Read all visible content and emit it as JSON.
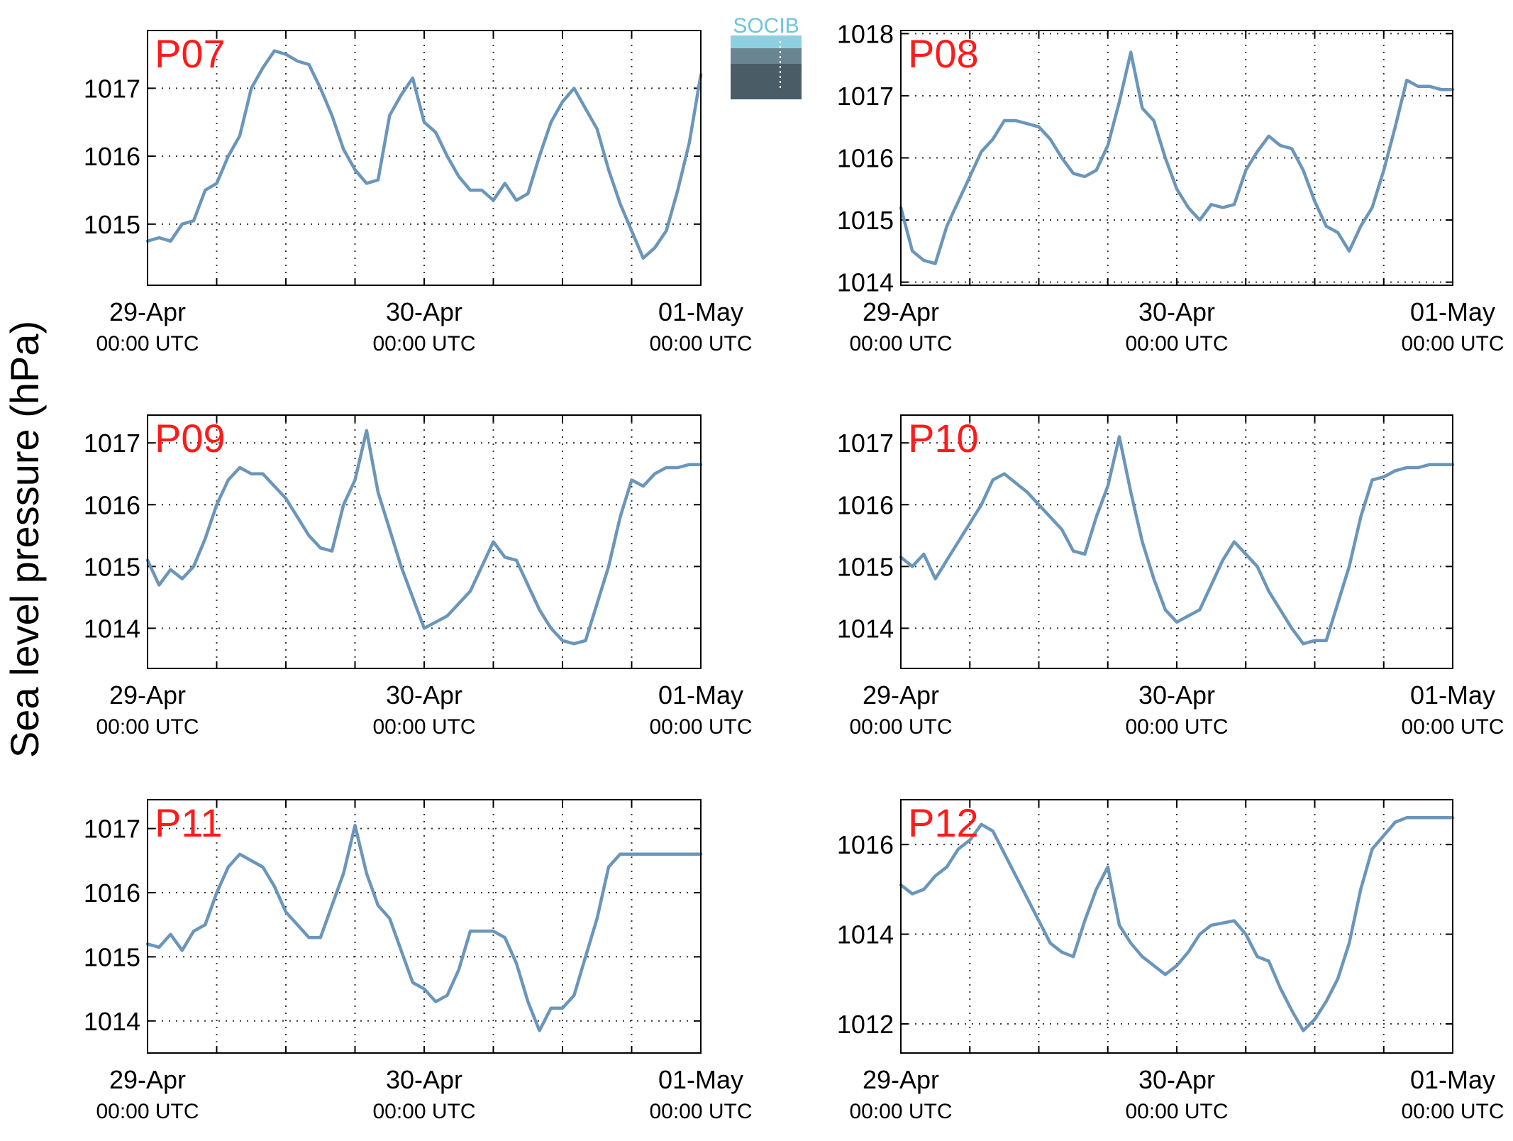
{
  "figure": {
    "ylabel": "Sea level pressure (hPa)",
    "logo_text": "SOCIB"
  },
  "colors": {
    "line": "#6b96ba",
    "panel_label": "#ff1a1a",
    "axis": "#000000",
    "grid": "#333333"
  },
  "chart_data": [
    {
      "type": "line",
      "panel_label": "P07",
      "x_ticks": [
        "29-Apr",
        "30-Apr",
        "01-May"
      ],
      "x_tick_sublabel": "00:00 UTC",
      "x_range": [
        "2014-04-29 00:00",
        "2014-05-01 00:00"
      ],
      "ylim": [
        1014.1,
        1017.85
      ],
      "yticks": [
        1015,
        1016,
        1017
      ],
      "grid": true,
      "series": [
        {
          "x_hours": [
            0,
            1,
            2,
            3,
            4,
            5,
            6,
            7,
            8,
            9,
            10,
            11,
            12,
            13,
            14,
            15,
            16,
            17,
            18,
            19,
            20,
            21,
            22,
            23,
            24,
            25,
            26,
            27,
            28,
            29,
            30,
            31,
            32,
            33,
            34,
            35,
            36,
            37,
            38,
            39,
            40,
            41,
            42,
            43,
            44,
            45,
            46,
            47,
            48
          ],
          "values": [
            1014.75,
            1014.8,
            1014.75,
            1015.0,
            1015.05,
            1015.5,
            1015.6,
            1016.0,
            1016.3,
            1017.0,
            1017.3,
            1017.55,
            1017.5,
            1017.4,
            1017.35,
            1017.0,
            1016.6,
            1016.1,
            1015.8,
            1015.6,
            1015.65,
            1016.6,
            1016.9,
            1017.15,
            1016.5,
            1016.35,
            1016.0,
            1015.7,
            1015.5,
            1015.5,
            1015.35,
            1015.6,
            1015.35,
            1015.45,
            1016.0,
            1016.5,
            1016.8,
            1017.0,
            1016.7,
            1016.4,
            1015.8,
            1015.3,
            1014.9,
            1014.5,
            1014.65,
            1014.9,
            1015.5,
            1016.2,
            1017.2
          ]
        }
      ]
    },
    {
      "type": "line",
      "panel_label": "P08",
      "x_ticks": [
        "29-Apr",
        "30-Apr",
        "01-May"
      ],
      "x_tick_sublabel": "00:00 UTC",
      "x_range": [
        "2014-04-29 00:00",
        "2014-05-01 00:00"
      ],
      "ylim": [
        1013.95,
        1018.05
      ],
      "yticks": [
        1014,
        1015,
        1016,
        1017,
        1018
      ],
      "grid": true,
      "series": [
        {
          "x_hours": [
            0,
            1,
            2,
            3,
            4,
            5,
            6,
            7,
            8,
            9,
            10,
            11,
            12,
            13,
            14,
            15,
            16,
            17,
            18,
            19,
            20,
            21,
            22,
            23,
            24,
            25,
            26,
            27,
            28,
            29,
            30,
            31,
            32,
            33,
            34,
            35,
            36,
            37,
            38,
            39,
            40,
            41,
            42,
            43,
            44,
            45,
            46,
            47,
            48
          ],
          "values": [
            1015.2,
            1014.5,
            1014.35,
            1014.3,
            1014.9,
            1015.3,
            1015.7,
            1016.1,
            1016.3,
            1016.6,
            1016.6,
            1016.55,
            1016.5,
            1016.3,
            1016.0,
            1015.75,
            1015.7,
            1015.8,
            1016.2,
            1016.9,
            1017.7,
            1016.8,
            1016.6,
            1016.0,
            1015.5,
            1015.2,
            1015.0,
            1015.25,
            1015.2,
            1015.25,
            1015.8,
            1016.1,
            1016.35,
            1016.2,
            1016.15,
            1015.8,
            1015.3,
            1014.9,
            1014.8,
            1014.5,
            1014.9,
            1015.2,
            1015.8,
            1016.5,
            1017.25,
            1017.15,
            1017.15,
            1017.1,
            1017.1
          ]
        }
      ]
    },
    {
      "type": "line",
      "panel_label": "P09",
      "x_ticks": [
        "29-Apr",
        "30-Apr",
        "01-May"
      ],
      "x_tick_sublabel": "00:00 UTC",
      "x_range": [
        "2014-04-29 00:00",
        "2014-05-01 00:00"
      ],
      "ylim": [
        1013.35,
        1017.45
      ],
      "yticks": [
        1014,
        1015,
        1016,
        1017
      ],
      "grid": true,
      "series": [
        {
          "x_hours": [
            0,
            1,
            2,
            3,
            4,
            5,
            6,
            7,
            8,
            9,
            10,
            11,
            12,
            13,
            14,
            15,
            16,
            17,
            18,
            19,
            20,
            21,
            22,
            23,
            24,
            25,
            26,
            27,
            28,
            29,
            30,
            31,
            32,
            33,
            34,
            35,
            36,
            37,
            38,
            39,
            40,
            41,
            42,
            43,
            44,
            45,
            46,
            47,
            48
          ],
          "values": [
            1015.1,
            1014.7,
            1014.95,
            1014.8,
            1015.0,
            1015.45,
            1016.0,
            1016.4,
            1016.6,
            1016.5,
            1016.5,
            1016.3,
            1016.1,
            1015.8,
            1015.5,
            1015.3,
            1015.25,
            1016.0,
            1016.4,
            1017.2,
            1016.2,
            1015.6,
            1015.0,
            1014.5,
            1014.0,
            1014.1,
            1014.2,
            1014.4,
            1014.6,
            1015.0,
            1015.4,
            1015.15,
            1015.1,
            1014.7,
            1014.3,
            1014.0,
            1013.8,
            1013.75,
            1013.8,
            1014.4,
            1015.0,
            1015.8,
            1016.4,
            1016.3,
            1016.5,
            1016.6,
            1016.6,
            1016.65,
            1016.65
          ]
        }
      ]
    },
    {
      "type": "line",
      "panel_label": "P10",
      "x_ticks": [
        "29-Apr",
        "30-Apr",
        "01-May"
      ],
      "x_tick_sublabel": "00:00 UTC",
      "x_range": [
        "2014-04-29 00:00",
        "2014-05-01 00:00"
      ],
      "ylim": [
        1013.35,
        1017.45
      ],
      "yticks": [
        1014,
        1015,
        1016,
        1017
      ],
      "grid": true,
      "series": [
        {
          "x_hours": [
            0,
            1,
            2,
            3,
            4,
            5,
            6,
            7,
            8,
            9,
            10,
            11,
            12,
            13,
            14,
            15,
            16,
            17,
            18,
            19,
            20,
            21,
            22,
            23,
            24,
            25,
            26,
            27,
            28,
            29,
            30,
            31,
            32,
            33,
            34,
            35,
            36,
            37,
            38,
            39,
            40,
            41,
            42,
            43,
            44,
            45,
            46,
            47,
            48
          ],
          "values": [
            1015.15,
            1015.0,
            1015.2,
            1014.8,
            1015.1,
            1015.4,
            1015.7,
            1016.0,
            1016.4,
            1016.5,
            1016.35,
            1016.2,
            1016.0,
            1015.8,
            1015.6,
            1015.25,
            1015.2,
            1015.8,
            1016.3,
            1017.1,
            1016.2,
            1015.4,
            1014.8,
            1014.3,
            1014.1,
            1014.2,
            1014.3,
            1014.7,
            1015.1,
            1015.4,
            1015.2,
            1015.0,
            1014.6,
            1014.3,
            1014.0,
            1013.75,
            1013.8,
            1013.8,
            1014.4,
            1015.0,
            1015.8,
            1016.4,
            1016.45,
            1016.55,
            1016.6,
            1016.6,
            1016.65,
            1016.65,
            1016.65
          ]
        }
      ]
    },
    {
      "type": "line",
      "panel_label": "P11",
      "x_ticks": [
        "29-Apr",
        "30-Apr",
        "01-May"
      ],
      "x_tick_sublabel": "00:00 UTC",
      "x_range": [
        "2014-04-29 00:00",
        "2014-05-01 00:00"
      ],
      "ylim": [
        1013.5,
        1017.45
      ],
      "yticks": [
        1014,
        1015,
        1016,
        1017
      ],
      "grid": true,
      "series": [
        {
          "x_hours": [
            0,
            1,
            2,
            3,
            4,
            5,
            6,
            7,
            8,
            9,
            10,
            11,
            12,
            13,
            14,
            15,
            16,
            17,
            18,
            19,
            20,
            21,
            22,
            23,
            24,
            25,
            26,
            27,
            28,
            29,
            30,
            31,
            32,
            33,
            34,
            35,
            36,
            37,
            38,
            39,
            40,
            41,
            42,
            43,
            44,
            45,
            46,
            47,
            48
          ],
          "values": [
            1015.2,
            1015.15,
            1015.35,
            1015.1,
            1015.4,
            1015.5,
            1016.0,
            1016.4,
            1016.6,
            1016.5,
            1016.4,
            1016.1,
            1015.7,
            1015.5,
            1015.3,
            1015.3,
            1015.8,
            1016.3,
            1017.05,
            1016.3,
            1015.8,
            1015.6,
            1015.1,
            1014.6,
            1014.5,
            1014.3,
            1014.4,
            1014.8,
            1015.4,
            1015.4,
            1015.4,
            1015.3,
            1014.9,
            1014.3,
            1013.85,
            1014.2,
            1014.2,
            1014.4,
            1015.0,
            1015.6,
            1016.4,
            1016.6,
            1016.6,
            1016.6,
            1016.6,
            1016.6,
            1016.6,
            1016.6,
            1016.6
          ]
        }
      ]
    },
    {
      "type": "line",
      "panel_label": "P12",
      "x_ticks": [
        "29-Apr",
        "30-Apr",
        "01-May"
      ],
      "x_tick_sublabel": "00:00 UTC",
      "x_range": [
        "2014-04-29 00:00",
        "2014-05-01 00:00"
      ],
      "ylim": [
        1011.35,
        1017.0
      ],
      "yticks": [
        1012,
        1014,
        1016
      ],
      "grid": true,
      "series": [
        {
          "x_hours": [
            0,
            1,
            2,
            3,
            4,
            5,
            6,
            7,
            8,
            9,
            10,
            11,
            12,
            13,
            14,
            15,
            16,
            17,
            18,
            19,
            20,
            21,
            22,
            23,
            24,
            25,
            26,
            27,
            28,
            29,
            30,
            31,
            32,
            33,
            34,
            35,
            36,
            37,
            38,
            39,
            40,
            41,
            42,
            43,
            44,
            45,
            46,
            47,
            48
          ],
          "values": [
            1015.1,
            1014.9,
            1015.0,
            1015.3,
            1015.5,
            1015.9,
            1016.1,
            1016.45,
            1016.3,
            1015.8,
            1015.3,
            1014.8,
            1014.3,
            1013.8,
            1013.6,
            1013.5,
            1014.3,
            1015.0,
            1015.5,
            1014.2,
            1013.8,
            1013.5,
            1013.3,
            1013.1,
            1013.3,
            1013.6,
            1014.0,
            1014.2,
            1014.25,
            1014.3,
            1014.0,
            1013.5,
            1013.4,
            1012.8,
            1012.3,
            1011.85,
            1012.1,
            1012.5,
            1013.0,
            1013.8,
            1015.0,
            1015.9,
            1016.2,
            1016.5,
            1016.6,
            1016.6,
            1016.6,
            1016.6,
            1016.6
          ]
        }
      ]
    }
  ]
}
